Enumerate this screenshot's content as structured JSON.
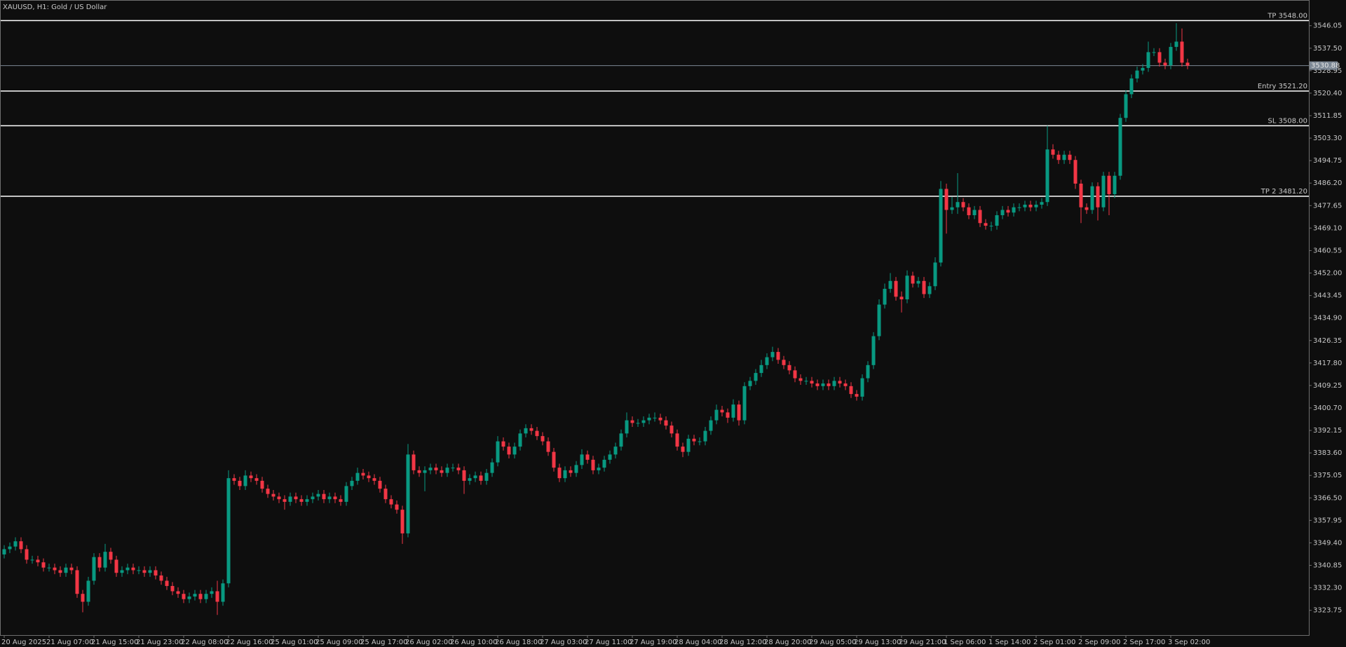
{
  "chart_data": {
    "type": "candlestick",
    "title": "XAUUSD, H1:  Gold / US Dollar",
    "categories": [
      "20 Aug 2025",
      null,
      null,
      null,
      null,
      null,
      null,
      null,
      "21 Aug 07:00",
      null,
      null,
      null,
      null,
      null,
      null,
      null,
      "21 Aug 15:00",
      null,
      null,
      null,
      null,
      null,
      null,
      null,
      "21 Aug 23:00",
      null,
      null,
      null,
      null,
      null,
      null,
      null,
      "22 Aug 08:00",
      null,
      null,
      null,
      null,
      null,
      null,
      null,
      "22 Aug 16:00",
      null,
      null,
      null,
      null,
      null,
      null,
      null,
      "25 Aug 01:00",
      null,
      null,
      null,
      null,
      null,
      null,
      null,
      "25 Aug 09:00",
      null,
      null,
      null,
      null,
      null,
      null,
      null,
      "25 Aug 17:00",
      null,
      null,
      null,
      null,
      null,
      null,
      null,
      "26 Aug 02:00",
      null,
      null,
      null,
      null,
      null,
      null,
      null,
      "26 Aug 10:00",
      null,
      null,
      null,
      null,
      null,
      null,
      null,
      "26 Aug 18:00",
      null,
      null,
      null,
      null,
      null,
      null,
      null,
      "27 Aug 03:00",
      null,
      null,
      null,
      null,
      null,
      null,
      null,
      "27 Aug 11:00",
      null,
      null,
      null,
      null,
      null,
      null,
      null,
      "27 Aug 19:00",
      null,
      null,
      null,
      null,
      null,
      null,
      null,
      "28 Aug 04:00",
      null,
      null,
      null,
      null,
      null,
      null,
      null,
      "28 Aug 12:00",
      null,
      null,
      null,
      null,
      null,
      null,
      null,
      "28 Aug 20:00",
      null,
      null,
      null,
      null,
      null,
      null,
      null,
      "29 Aug 05:00",
      null,
      null,
      null,
      null,
      null,
      null,
      null,
      "29 Aug 13:00",
      null,
      null,
      null,
      null,
      null,
      null,
      null,
      "29 Aug 21:00",
      null,
      null,
      null,
      null,
      null,
      null,
      null,
      "1 Sep 06:00",
      null,
      null,
      null,
      null,
      null,
      null,
      null,
      "1 Sep 14:00",
      null,
      null,
      null,
      null,
      null,
      null,
      null,
      "2 Sep 01:00",
      null,
      null,
      null,
      null,
      null,
      null,
      null,
      "2 Sep 09:00",
      null,
      null,
      null,
      null,
      null,
      null,
      null,
      "2 Sep 17:00",
      null,
      null,
      null,
      null,
      null,
      null,
      null,
      "3 Sep 02:00",
      null,
      null,
      null
    ],
    "open": [
      3345,
      3347,
      3348,
      3350,
      3347,
      3343,
      3343,
      3342,
      3340,
      3340,
      3339,
      3338,
      3340,
      3339,
      3330,
      3327,
      3335,
      3344,
      3340,
      3346,
      3343,
      3338,
      3339,
      3340,
      3339,
      3339,
      3338,
      3339,
      3337,
      3335,
      3333,
      3331,
      3330,
      3328,
      3329,
      3330,
      3328,
      3330,
      3331,
      3327,
      3334,
      3374,
      3373,
      3371,
      3375,
      3374,
      3373,
      3370,
      3368,
      3367,
      3366,
      3365,
      3367,
      3366,
      3365,
      3366,
      3367,
      3368,
      3366,
      3367,
      3366,
      3365,
      3371,
      3373,
      3376,
      3375,
      3374,
      3373,
      3370,
      3366,
      3364,
      3362,
      3353,
      3383,
      3377,
      3376,
      3377,
      3378,
      3377,
      3376,
      3378,
      3378,
      3377,
      3373,
      3374,
      3375,
      3373,
      3376,
      3380,
      3388,
      3386,
      3383,
      3386,
      3391,
      3393,
      3392,
      3390,
      3388,
      3384,
      3378,
      3374,
      3377,
      3376,
      3379,
      3383,
      3381,
      3377,
      3378,
      3381,
      3383,
      3386,
      3391,
      3396,
      3395,
      3395,
      3396,
      3397,
      3397,
      3396,
      3394,
      3391,
      3386,
      3384,
      3389,
      3388,
      3388,
      3392,
      3396,
      3400,
      3399,
      3397,
      3402,
      3396,
      3409,
      3411,
      3414,
      3417,
      3420,
      3422,
      3419,
      3417,
      3415,
      3412,
      3411,
      3411,
      3410,
      3409,
      3410,
      3409,
      3411,
      3410,
      3409,
      3406,
      3405,
      3412,
      3417,
      3428,
      3440,
      3446,
      3449,
      3443,
      3442,
      3451,
      3448,
      3449,
      3444,
      3447,
      3456,
      3484,
      3476,
      3477,
      3479,
      3477,
      3474,
      3476,
      3471,
      3470,
      3470,
      3474,
      3476,
      3475,
      3477,
      3477,
      3478,
      3477,
      3478,
      3479,
      3499,
      3497,
      3495,
      3497,
      3495,
      3486,
      3477,
      3476,
      3485,
      3477,
      3489,
      3482,
      3489,
      3511,
      3520,
      3526,
      3529,
      3530,
      3536,
      3536,
      3532,
      3531,
      3538,
      3540,
      3532
    ],
    "high": [
      3348.5,
      3349.5,
      3351.5,
      3351.5,
      3348.5,
      3344.5,
      3344.5,
      3343.5,
      3341.5,
      3341.5,
      3340.5,
      3341.5,
      3341.5,
      3340.5,
      3331.5,
      3336.5,
      3345.5,
      3345.5,
      3349,
      3347.5,
      3344.5,
      3340.5,
      3341.5,
      3341.5,
      3340.5,
      3340.5,
      3340.5,
      3340.5,
      3338.5,
      3336.5,
      3334.5,
      3332.5,
      3331.5,
      3330.5,
      3331.5,
      3331.5,
      3331.5,
      3332.5,
      3335,
      3335.5,
      3377,
      3375.5,
      3374.5,
      3377,
      3376.5,
      3375.5,
      3374.5,
      3371.5,
      3369.5,
      3368.5,
      3367.5,
      3368.5,
      3368.5,
      3367.5,
      3367.5,
      3368.5,
      3369.5,
      3369.5,
      3368.5,
      3368.5,
      3367.5,
      3372.5,
      3374.5,
      3378,
      3377.5,
      3376.5,
      3375.5,
      3374.5,
      3371.5,
      3367.5,
      3365.5,
      3363.5,
      3387,
      3384.5,
      3378.5,
      3378.5,
      3379.5,
      3379.5,
      3378.5,
      3379.5,
      3379.5,
      3379.5,
      3378.5,
      3375.5,
      3376.5,
      3376.5,
      3377.5,
      3381.5,
      3390,
      3389.5,
      3387.5,
      3387.5,
      3392.5,
      3394.5,
      3394.5,
      3393.5,
      3391.5,
      3389.5,
      3385.5,
      3379.5,
      3378.5,
      3378.5,
      3380.5,
      3385,
      3384.5,
      3382.5,
      3379.5,
      3382.5,
      3384.5,
      3387.5,
      3392.5,
      3399,
      3397.5,
      3396.5,
      3397.5,
      3398.5,
      3399,
      3398.5,
      3397.5,
      3395.5,
      3392.5,
      3387.5,
      3390.5,
      3390.5,
      3389.5,
      3393.5,
      3397.5,
      3402,
      3401.5,
      3400.5,
      3404,
      3403.5,
      3410.5,
      3412.5,
      3415.5,
      3419,
      3421.5,
      3424,
      3423.5,
      3420.5,
      3418.5,
      3416.5,
      3413.5,
      3412.5,
      3412.5,
      3411.5,
      3411.5,
      3411.5,
      3412.5,
      3412.5,
      3411.5,
      3410.5,
      3407.5,
      3413.5,
      3418.5,
      3429.5,
      3442,
      3448,
      3452,
      3450.5,
      3445,
      3453,
      3452.5,
      3450.5,
      3450.5,
      3448.5,
      3458,
      3487,
      3486,
      3481,
      3490,
      3480.5,
      3478.5,
      3477.5,
      3477.5,
      3472.5,
      3471.5,
      3475.5,
      3477.5,
      3477.5,
      3478.5,
      3478.5,
      3479.5,
      3479.5,
      3479.5,
      3480.5,
      3508,
      3501,
      3498.5,
      3498.5,
      3498.5,
      3496.5,
      3487.5,
      3478.5,
      3486.5,
      3486.5,
      3490.5,
      3490.5,
      3490.5,
      3512.5,
      3521.5,
      3527.5,
      3530.5,
      3531.5,
      3540,
      3537.5,
      3537.5,
      3533.5,
      3539.5,
      3547,
      3545,
      3533.5
    ],
    "low": [
      3343.5,
      3345.5,
      3346.5,
      3345.5,
      3341.5,
      3341.5,
      3340.5,
      3338.5,
      3338.5,
      3337.5,
      3336.5,
      3336.5,
      3337.5,
      3328.5,
      3323,
      3325.5,
      3333.5,
      3338.5,
      3338.5,
      3341.5,
      3336.5,
      3336.5,
      3337.5,
      3337.5,
      3337.5,
      3336.5,
      3336.5,
      3335.5,
      3333.5,
      3331.5,
      3329.5,
      3328.5,
      3326.5,
      3326.5,
      3327.5,
      3326.5,
      3326.5,
      3328.5,
      3322,
      3325.5,
      3332.5,
      3371.5,
      3369.5,
      3369.5,
      3372.5,
      3371.5,
      3368.5,
      3366.5,
      3365.5,
      3364.5,
      3362,
      3363.5,
      3364.5,
      3363.5,
      3363.5,
      3364.5,
      3365.5,
      3364.5,
      3364.5,
      3364.5,
      3363.5,
      3363.5,
      3369.5,
      3371.5,
      3373.5,
      3372.5,
      3371.5,
      3368.5,
      3364.5,
      3362.5,
      3360.5,
      3349,
      3351.5,
      3375.5,
      3374.5,
      3369,
      3375.5,
      3375.5,
      3374.5,
      3374.5,
      3376.5,
      3375.5,
      3368,
      3371.5,
      3372.5,
      3371.5,
      3371.5,
      3374.5,
      3378.5,
      3384.5,
      3381.5,
      3381.5,
      3384.5,
      3389.5,
      3390.5,
      3388.5,
      3386.5,
      3382.5,
      3376.5,
      3372.5,
      3372.5,
      3374.5,
      3374.5,
      3377.5,
      3379.5,
      3375.5,
      3375.5,
      3376.5,
      3379.5,
      3381.5,
      3384.5,
      3389.5,
      3393.5,
      3393.5,
      3393.5,
      3394.5,
      3395.5,
      3394.5,
      3392.5,
      3389.5,
      3384.5,
      3382,
      3382.5,
      3386.5,
      3386.5,
      3386.5,
      3390.5,
      3394.5,
      3397.5,
      3395,
      3395.5,
      3394,
      3394.5,
      3407.5,
      3409.5,
      3412.5,
      3415.5,
      3418.5,
      3417.5,
      3415.5,
      3413.5,
      3410.5,
      3409.5,
      3409.5,
      3408.5,
      3407.5,
      3407.5,
      3407.5,
      3407.5,
      3408.5,
      3407.5,
      3404.5,
      3403.5,
      3403.5,
      3410.5,
      3415.5,
      3426.5,
      3438.5,
      3444.5,
      3441.5,
      3437,
      3440.5,
      3446.5,
      3446.5,
      3442.5,
      3442.5,
      3445.5,
      3454.5,
      3467,
      3474.5,
      3474.5,
      3475.5,
      3472.5,
      3472.5,
      3469.5,
      3468.5,
      3468,
      3468.5,
      3472.5,
      3473.5,
      3473.5,
      3475.5,
      3475.5,
      3475.5,
      3475.5,
      3476.5,
      3477.5,
      3495.5,
      3493.5,
      3493.5,
      3493.5,
      3484,
      3471,
      3474.5,
      3474.5,
      3472,
      3475.5,
      3474,
      3480.5,
      3487.5,
      3509.5,
      3518.5,
      3524.5,
      3527.5,
      3528.5,
      3534.5,
      3530.5,
      3529.5,
      3529.5,
      3536.5,
      3530.5,
      3529.5
    ],
    "close": [
      3347,
      3348,
      3350,
      3347,
      3343,
      3343,
      3342,
      3340,
      3340,
      3339,
      3338,
      3340,
      3339,
      3330,
      3327,
      3335,
      3344,
      3340,
      3346,
      3343,
      3338,
      3339,
      3340,
      3339,
      3339,
      3338,
      3339,
      3337,
      3335,
      3333,
      3331,
      3330,
      3328,
      3329,
      3330,
      3328,
      3330,
      3331,
      3327,
      3334,
      3374,
      3373,
      3371,
      3375,
      3374,
      3373,
      3370,
      3368,
      3367,
      3366,
      3365,
      3367,
      3366,
      3365,
      3366,
      3367,
      3368,
      3366,
      3367,
      3366,
      3365,
      3371,
      3373,
      3376,
      3375,
      3374,
      3373,
      3370,
      3366,
      3364,
      3362,
      3353,
      3383,
      3377,
      3376,
      3377,
      3378,
      3377,
      3376,
      3378,
      3378,
      3377,
      3373,
      3374,
      3375,
      3373,
      3376,
      3380,
      3388,
      3386,
      3383,
      3386,
      3391,
      3393,
      3392,
      3390,
      3388,
      3384,
      3378,
      3374,
      3377,
      3376,
      3379,
      3383,
      3381,
      3377,
      3378,
      3381,
      3383,
      3386,
      3391,
      3396,
      3395,
      3395,
      3396,
      3397,
      3397,
      3396,
      3394,
      3391,
      3386,
      3384,
      3389,
      3388,
      3388,
      3392,
      3396,
      3400,
      3399,
      3397,
      3402,
      3396,
      3409,
      3411,
      3414,
      3417,
      3420,
      3422,
      3419,
      3417,
      3415,
      3412,
      3411,
      3411,
      3410,
      3409,
      3410,
      3409,
      3411,
      3410,
      3409,
      3406,
      3405,
      3412,
      3417,
      3428,
      3440,
      3446,
      3449,
      3443,
      3442,
      3451,
      3448,
      3449,
      3444,
      3447,
      3456,
      3484,
      3476,
      3477,
      3479,
      3477,
      3474,
      3476,
      3471,
      3470,
      3470,
      3474,
      3476,
      3475,
      3477,
      3477,
      3478,
      3477,
      3478,
      3479,
      3499,
      3497,
      3495,
      3497,
      3495,
      3486,
      3477,
      3476,
      3485,
      3477,
      3489,
      3482,
      3489,
      3511,
      3520,
      3526,
      3529,
      3530,
      3536,
      3536,
      3532,
      3531,
      3538,
      3540,
      3532,
      3530.88
    ],
    "up_color": "#089981",
    "down_color": "#f23645",
    "ylim": [
      3314.33,
      3555.83
    ],
    "yticks": [
      3546.05,
      {
        "value": 3537.5,
        "label": "3537.50"
      },
      3528.95,
      {
        "value": 3520.4,
        "label": "3520.40"
      },
      3511.85,
      {
        "value": 3503.3,
        "label": "3503.30"
      },
      3494.75,
      {
        "value": 3486.2,
        "label": "3486.20"
      },
      3477.65,
      {
        "value": 3469.1,
        "label": "3469.10"
      },
      3460.55,
      {
        "value": 3452,
        "label": "3452.00"
      },
      3443.45,
      {
        "value": 3434.9,
        "label": "3434.90"
      },
      3426.35,
      {
        "value": 3417.8,
        "label": "3417.80"
      },
      3409.25,
      {
        "value": 3400.7,
        "label": "3400.70"
      },
      3392.15,
      {
        "value": 3383.6,
        "label": "3383.60"
      },
      3375.05,
      {
        "value": 3366.5,
        "label": "3366.50"
      },
      3357.95,
      {
        "value": 3349.4,
        "label": "3349.40"
      },
      3340.85,
      {
        "value": 3332.3,
        "label": "3332.30"
      },
      3323.75
    ],
    "levels": [
      {
        "label": "TP 3548.00",
        "value": 3548
      },
      {
        "label": "Entry 3521.20",
        "value": 3521.2
      },
      {
        "label": "SL 3508.00",
        "value": 3508
      },
      {
        "label": "TP 2 3481.20",
        "value": 3481.2
      }
    ],
    "last_price": 3530.88,
    "grid": false
  }
}
